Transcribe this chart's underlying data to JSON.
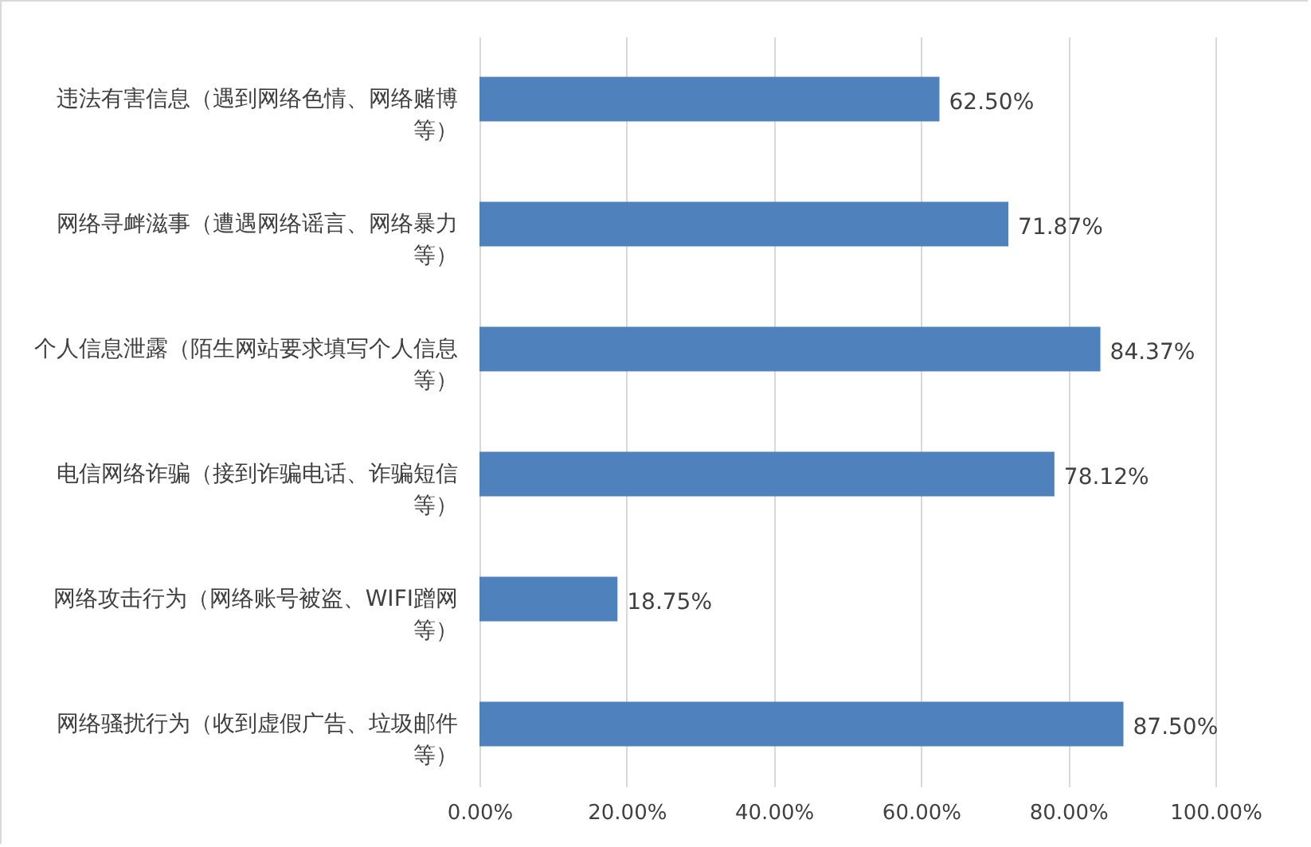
{
  "chart_data": {
    "type": "bar",
    "orientation": "horizontal",
    "categories": [
      "违法有害信息（遇到网络色情、网络赌博等）",
      "网络寻衅滋事（遭遇网络谣言、网络暴力等）",
      "个人信息泄露（陌生网站要求填写个人信息等）",
      "电信网络诈骗（接到诈骗电话、诈骗短信等）",
      "网络攻击行为（网络账号被盗、WIFI蹭网等）",
      "网络骚扰行为（收到虚假广告、垃圾邮件等）"
    ],
    "values": [
      62.5,
      71.87,
      84.37,
      78.12,
      18.75,
      87.5
    ],
    "value_labels": [
      "62.50%",
      "71.87%",
      "84.37%",
      "78.12%",
      "18.75%",
      "87.50%"
    ],
    "color": "#4f81bd",
    "xlim": [
      0,
      100
    ],
    "xticks": [
      {
        "value": 0,
        "label": "0.00%"
      },
      {
        "value": 20,
        "label": "20.00%"
      },
      {
        "value": 40,
        "label": "40.00%"
      },
      {
        "value": 60,
        "label": "60.00%"
      },
      {
        "value": 80,
        "label": "80.00%"
      },
      {
        "value": 100,
        "label": "100.00%"
      }
    ],
    "grid": "x"
  }
}
